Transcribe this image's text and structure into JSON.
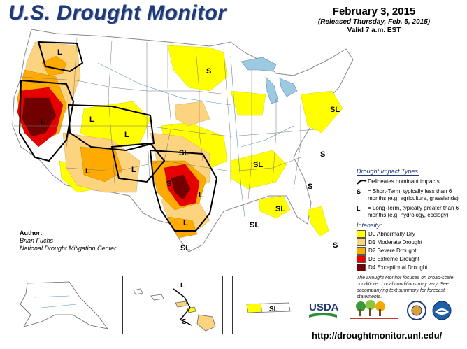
{
  "header": {
    "title": "U.S. Drought Monitor",
    "date": "February 3, 2015",
    "released": "(Released Thursday, Feb. 5, 2015)",
    "valid": "Valid 7 a.m. EST"
  },
  "map_labels": {
    "l_northwest": "L",
    "l_california": "L",
    "l_great_basin": "L",
    "l_arizona": "L",
    "l_new_mexico": "L",
    "l_colorado": "L",
    "l_texas_central": "L",
    "l_texas_south": "L",
    "sl_plains": "SL",
    "sl_texas_south": "SL",
    "sl_ohio_valley": "SL",
    "sl_southeast": "SL",
    "sl_gulf": "SL",
    "sl_northeast": "SL",
    "s_dakotas": "S",
    "s_texas": "S",
    "s_carolinas": "S",
    "s_georgia": "S",
    "s_florida": "S",
    "l_hawaii": "L",
    "s_hawaii": "S",
    "sl_puerto_rico": "SL"
  },
  "legend": {
    "impact_title": "Drought Impact Types:",
    "boundary_text": "Delineates dominant impacts",
    "s_symbol": "S",
    "s_text": "= Short-Term, typically less than 6 months (e.g. agriculture, grasslands)",
    "l_symbol": "L",
    "l_text": "= Long-Term, typically greater than 6 months (e.g. hydrology, ecology)",
    "intensity_title": "Intensity:",
    "intensity": [
      {
        "label": "D0 Abnormally Dry",
        "color": "#ffff00"
      },
      {
        "label": "D1 Moderate Drought",
        "color": "#fcd37f"
      },
      {
        "label": "D2 Severe Drought",
        "color": "#ffaa00"
      },
      {
        "label": "D3 Extreme Drought",
        "color": "#e60000"
      },
      {
        "label": "D4 Exceptional Drought",
        "color": "#730000"
      }
    ]
  },
  "note": "The Drought Monitor focuses on broad-scale conditions. Local conditions may vary. See accompanying text summary for forecast statements.",
  "author": {
    "title": "Author:",
    "name": "Brian Fuchs",
    "org": "National Drought Mitigation Center"
  },
  "logos": {
    "usda": "USDA"
  },
  "url": "http://droughtmonitor.unl.edu/",
  "colors": {
    "title_blue": "#1f3a78",
    "water": "#9ecae1",
    "d0": "#ffff00",
    "d1": "#fcd37f",
    "d2": "#ffaa00",
    "d3": "#e60000",
    "d4": "#730000"
  }
}
